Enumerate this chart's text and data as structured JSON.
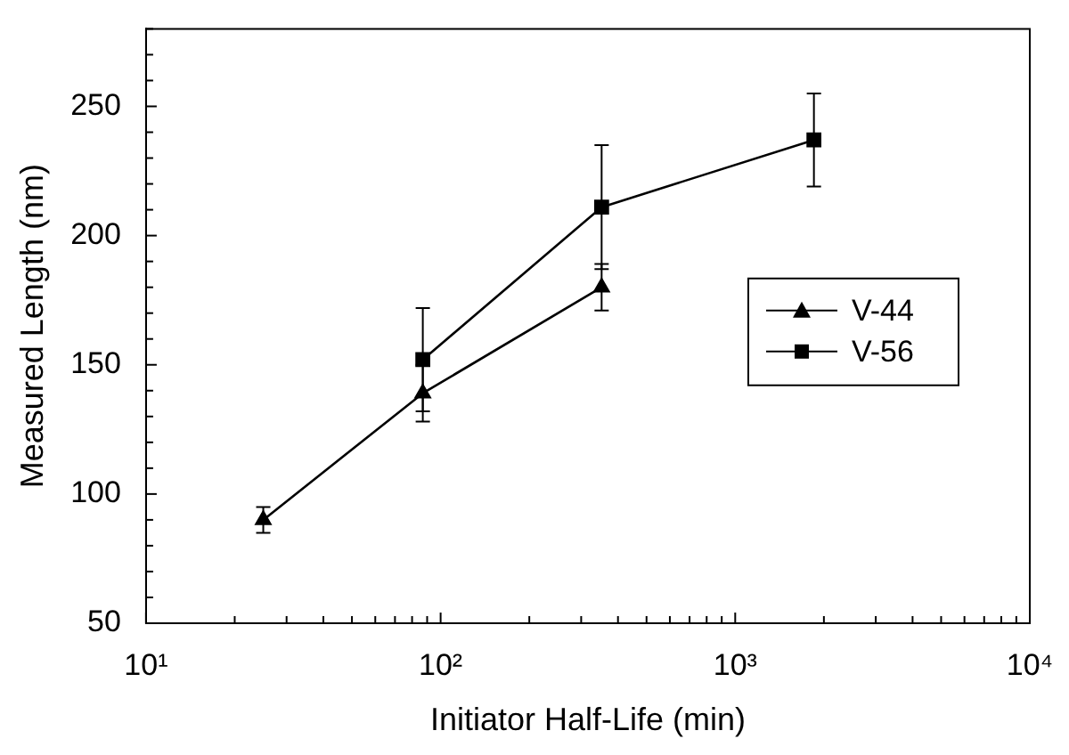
{
  "chart_data": {
    "type": "line",
    "xlabel": "Initiator Half-Life (min)",
    "ylabel": "Measured Length (nm)",
    "log": "x",
    "grid": false,
    "legend": "right",
    "line_style": "solid",
    "xlim": [
      10,
      10000
    ],
    "xticks": [
      {
        "value": 10,
        "label": "10¹"
      },
      {
        "value": 20,
        "label": null
      },
      {
        "value": 30,
        "label": null
      },
      {
        "value": 40,
        "label": null
      },
      {
        "value": 50,
        "label": null
      },
      {
        "value": 60,
        "label": null
      },
      {
        "value": 70,
        "label": null
      },
      {
        "value": 80,
        "label": null
      },
      {
        "value": 90,
        "label": null
      },
      {
        "value": 100,
        "label": "10²"
      },
      {
        "value": 200,
        "label": null
      },
      {
        "value": 300,
        "label": null
      },
      {
        "value": 400,
        "label": null
      },
      {
        "value": 500,
        "label": null
      },
      {
        "value": 600,
        "label": null
      },
      {
        "value": 700,
        "label": null
      },
      {
        "value": 800,
        "label": null
      },
      {
        "value": 900,
        "label": null
      },
      {
        "value": 1000,
        "label": "10³"
      },
      {
        "value": 2000,
        "label": null
      },
      {
        "value": 3000,
        "label": null
      },
      {
        "value": 4000,
        "label": null
      },
      {
        "value": 5000,
        "label": null
      },
      {
        "value": 6000,
        "label": null
      },
      {
        "value": 7000,
        "label": null
      },
      {
        "value": 8000,
        "label": null
      },
      {
        "value": 9000,
        "label": null
      },
      {
        "value": 10000,
        "label": "10⁴"
      }
    ],
    "ylim": [
      50,
      280
    ],
    "yticks": [
      50,
      {
        "value": 60,
        "label": null
      },
      {
        "value": 70,
        "label": null
      },
      {
        "value": 80,
        "label": null
      },
      {
        "value": 90,
        "label": null
      },
      100,
      {
        "value": 110,
        "label": null
      },
      {
        "value": 120,
        "label": null
      },
      {
        "value": 130,
        "label": null
      },
      {
        "value": 140,
        "label": null
      },
      150,
      {
        "value": 160,
        "label": null
      },
      {
        "value": 170,
        "label": null
      },
      {
        "value": 180,
        "label": null
      },
      {
        "value": 190,
        "label": null
      },
      200,
      {
        "value": 210,
        "label": null
      },
      {
        "value": 220,
        "label": null
      },
      {
        "value": 230,
        "label": null
      },
      {
        "value": 240,
        "label": null
      },
      250,
      {
        "value": 260,
        "label": null
      },
      {
        "value": 270,
        "label": null
      },
      {
        "value": 280,
        "label": null
      }
    ],
    "series": [
      {
        "name": "V-44",
        "color": "#000000",
        "marker": "triangle",
        "x": [
          25,
          87,
          352
        ],
        "values": [
          90,
          139,
          180
        ],
        "errors": [
          5,
          11,
          9
        ]
      },
      {
        "name": "V-56",
        "color": "#000000",
        "marker": "square",
        "x": [
          87,
          352,
          1850
        ],
        "values": [
          152,
          211,
          237
        ],
        "errors": [
          20,
          24,
          18
        ]
      }
    ]
  }
}
